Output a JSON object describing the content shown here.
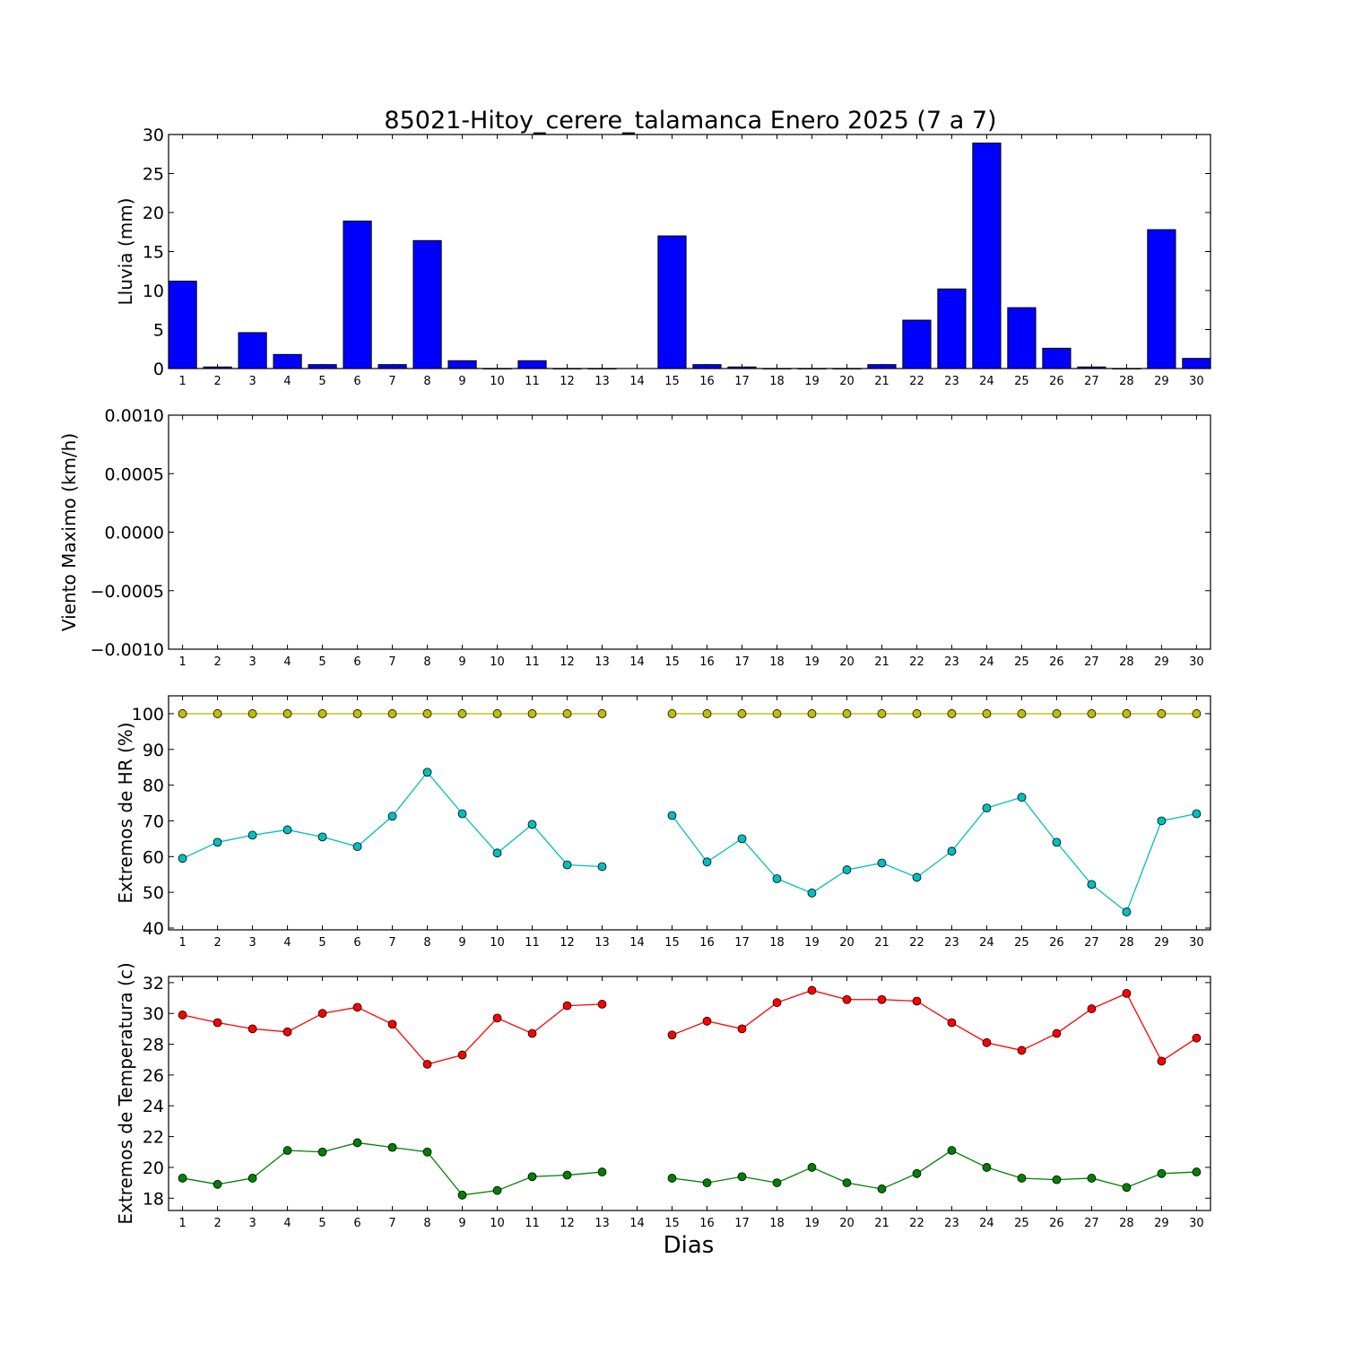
{
  "figure": {
    "title": "85021-Hitoy_cerere_talamanca Enero 2025  (7 a 7)",
    "xlabel": "Dias"
  },
  "chart_data": [
    {
      "type": "bar",
      "ylabel": "Lluvia (mm)",
      "categories": [
        1,
        2,
        3,
        4,
        5,
        6,
        7,
        8,
        9,
        10,
        11,
        12,
        13,
        14,
        15,
        16,
        17,
        18,
        19,
        20,
        21,
        22,
        23,
        24,
        25,
        26,
        27,
        28,
        29,
        30
      ],
      "values": [
        11.2,
        0.2,
        4.6,
        1.8,
        0.5,
        18.9,
        0.5,
        16.4,
        1.0,
        0.0,
        1.0,
        0.0,
        0.0,
        null,
        17.0,
        0.5,
        0.2,
        0.0,
        0.0,
        0.0,
        0.5,
        6.2,
        10.2,
        28.9,
        7.8,
        2.6,
        0.2,
        0.0,
        17.8,
        1.3
      ],
      "ylim": [
        0,
        30
      ],
      "yticks": [
        "0",
        "5",
        "10",
        "15",
        "20",
        "25",
        "30"
      ],
      "color": "#0000ff"
    },
    {
      "type": "line",
      "ylabel": "Viento Maximo (km/h)",
      "categories": [
        1,
        2,
        3,
        4,
        5,
        6,
        7,
        8,
        9,
        10,
        11,
        12,
        13,
        14,
        15,
        16,
        17,
        18,
        19,
        20,
        21,
        22,
        23,
        24,
        25,
        26,
        27,
        28,
        29,
        30
      ],
      "series": [],
      "ylim": [
        -0.001,
        0.001
      ],
      "yticks": [
        "−0.0010",
        "−0.0005",
        "0.0000",
        "0.0005",
        "0.0010"
      ]
    },
    {
      "type": "line",
      "ylabel": "Extremos de HR (%)",
      "categories": [
        1,
        2,
        3,
        4,
        5,
        6,
        7,
        8,
        9,
        10,
        11,
        12,
        13,
        14,
        15,
        16,
        17,
        18,
        19,
        20,
        21,
        22,
        23,
        24,
        25,
        26,
        27,
        28,
        29,
        30
      ],
      "series": [
        {
          "color": "#bfbf00",
          "values": [
            100,
            100,
            100,
            100,
            100,
            100,
            100,
            100,
            100,
            100,
            100,
            100,
            100,
            null,
            100,
            100,
            100,
            100,
            100,
            100,
            100,
            100,
            100,
            100,
            100,
            100,
            100,
            100,
            100,
            100
          ]
        },
        {
          "color": "#00bfbf",
          "values": [
            59.5,
            64,
            66,
            67.5,
            65.5,
            62.8,
            71.3,
            83.6,
            72,
            61,
            69,
            57.7,
            57.2,
            null,
            71.5,
            58.5,
            65,
            53.8,
            49.8,
            56.3,
            58.2,
            54.2,
            61.5,
            73.6,
            76.6,
            64,
            52.2,
            44.5,
            70,
            72
          ]
        }
      ],
      "ylim": [
        39.5,
        105
      ],
      "yticks": [
        "40",
        "50",
        "60",
        "70",
        "80",
        "90",
        "100"
      ]
    },
    {
      "type": "line",
      "ylabel": "Extremos de Temperatura (c)",
      "categories": [
        1,
        2,
        3,
        4,
        5,
        6,
        7,
        8,
        9,
        10,
        11,
        12,
        13,
        14,
        15,
        16,
        17,
        18,
        19,
        20,
        21,
        22,
        23,
        24,
        25,
        26,
        27,
        28,
        29,
        30
      ],
      "series": [
        {
          "color": "#ff0000",
          "values": [
            29.9,
            29.4,
            29.0,
            28.8,
            30.0,
            30.4,
            29.3,
            26.7,
            27.3,
            29.7,
            28.7,
            30.5,
            30.6,
            null,
            28.6,
            29.5,
            29.0,
            30.7,
            31.5,
            30.9,
            30.9,
            30.8,
            29.4,
            28.1,
            27.6,
            28.7,
            30.3,
            31.3,
            26.9,
            28.4
          ]
        },
        {
          "color": "#008000",
          "values": [
            19.3,
            18.9,
            19.3,
            21.1,
            21.0,
            21.6,
            21.3,
            21.0,
            18.2,
            18.5,
            19.4,
            19.5,
            19.7,
            null,
            19.3,
            19.0,
            19.4,
            19.0,
            20.0,
            19.0,
            18.6,
            19.6,
            21.1,
            20.0,
            19.3,
            19.2,
            19.3,
            18.7,
            19.6,
            19.7
          ]
        }
      ],
      "ylim": [
        17.2,
        32.4
      ],
      "yticks": [
        "18",
        "20",
        "22",
        "24",
        "26",
        "28",
        "30",
        "32"
      ]
    }
  ]
}
